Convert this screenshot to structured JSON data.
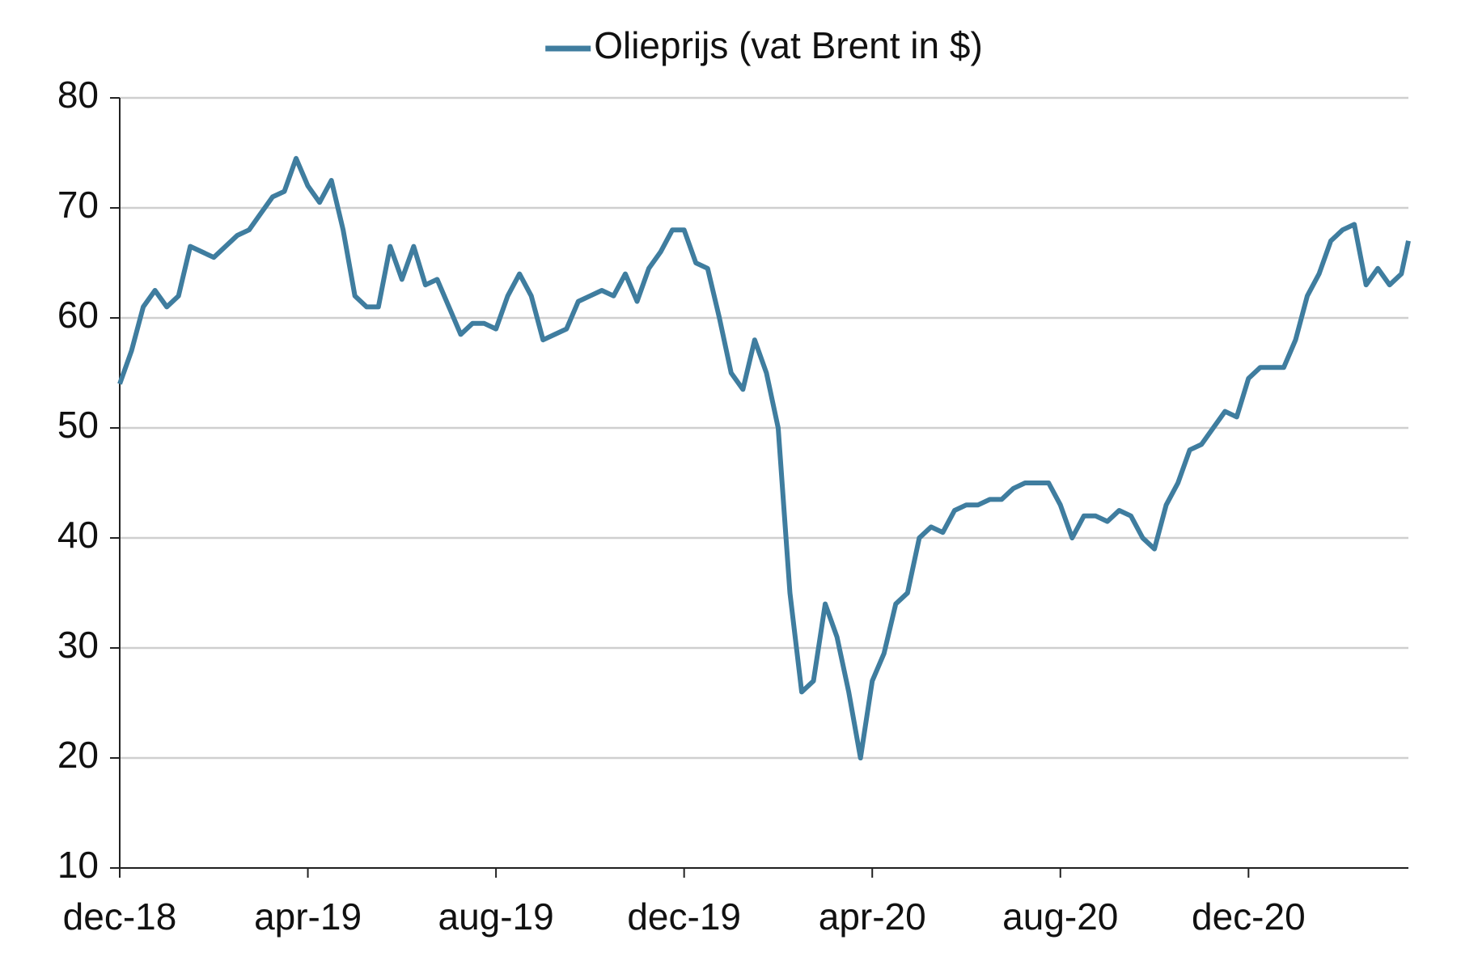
{
  "chart_data": {
    "type": "line",
    "legend": "top",
    "grid": true,
    "x": [
      0,
      0.25,
      0.5,
      0.75,
      1,
      1.25,
      1.5,
      1.75,
      2,
      2.25,
      2.5,
      2.75,
      3,
      3.25,
      3.5,
      3.75,
      4,
      4.25,
      4.5,
      4.75,
      5,
      5.25,
      5.5,
      5.75,
      6,
      6.25,
      6.5,
      6.75,
      7,
      7.25,
      7.5,
      7.75,
      8,
      8.25,
      8.5,
      8.75,
      9,
      9.25,
      9.5,
      9.75,
      10,
      10.25,
      10.5,
      10.75,
      11,
      11.25,
      11.5,
      11.75,
      12,
      12.25,
      12.5,
      12.75,
      13,
      13.25,
      13.5,
      13.75,
      14,
      14.25,
      14.5,
      14.75,
      15,
      15.25,
      15.5,
      15.75,
      16,
      16.25,
      16.5,
      16.75,
      17,
      17.25,
      17.5,
      17.75,
      18,
      18.25,
      18.5,
      18.75,
      19,
      19.25,
      19.5,
      19.75,
      20,
      20.25,
      20.5,
      20.75,
      21,
      21.25,
      21.5,
      21.75,
      22,
      22.25,
      22.5,
      22.75,
      23,
      23.25,
      23.5,
      23.75,
      24,
      24.25,
      24.5,
      24.75,
      25,
      25.25,
      25.5,
      25.75,
      26,
      26.25,
      26.5,
      26.75,
      27,
      27.25,
      27.4
    ],
    "series": [
      {
        "name": "Olieprijs (vat Brent in $)",
        "color": "#3f7d9f",
        "values": [
          54,
          57,
          61,
          62.5,
          61,
          62,
          66.5,
          66,
          65.5,
          66.5,
          67.5,
          68,
          69.5,
          71,
          71.5,
          74.5,
          72,
          70.5,
          72.5,
          68,
          62,
          61,
          61,
          66.5,
          63.5,
          66.5,
          63,
          63.5,
          61,
          58.5,
          59.5,
          59.5,
          59,
          62,
          64,
          62,
          58,
          58.5,
          59,
          61.5,
          62,
          62.5,
          62,
          64,
          61.5,
          64.5,
          66,
          68,
          68,
          65,
          64.5,
          60,
          55,
          53.5,
          58,
          55,
          50,
          35,
          26,
          27,
          34,
          31,
          26,
          20,
          27,
          29.5,
          34,
          35,
          40,
          41,
          40.5,
          42.5,
          43,
          43,
          43.5,
          43.5,
          44.5,
          45,
          45,
          45,
          43,
          40,
          42,
          42,
          41.5,
          42.5,
          42,
          40,
          39,
          43,
          45,
          48,
          48.5,
          50,
          51.5,
          51,
          54.5,
          55.5,
          55.5,
          55.5,
          58,
          62,
          64,
          67,
          68,
          68.5,
          63,
          64.5,
          63,
          64,
          67
        ]
      }
    ],
    "xlim": [
      0,
      27.4
    ],
    "xticks": [
      {
        "value": 0,
        "label": "dec-18"
      },
      {
        "value": 4,
        "label": "apr-19"
      },
      {
        "value": 8,
        "label": "aug-19"
      },
      {
        "value": 12,
        "label": "dec-19"
      },
      {
        "value": 16,
        "label": "apr-20"
      },
      {
        "value": 20,
        "label": "aug-20"
      },
      {
        "value": 24,
        "label": "dec-20"
      }
    ],
    "ylim": [
      10,
      80
    ],
    "yticks": [
      10,
      20,
      30,
      40,
      50,
      60,
      70,
      80
    ]
  }
}
